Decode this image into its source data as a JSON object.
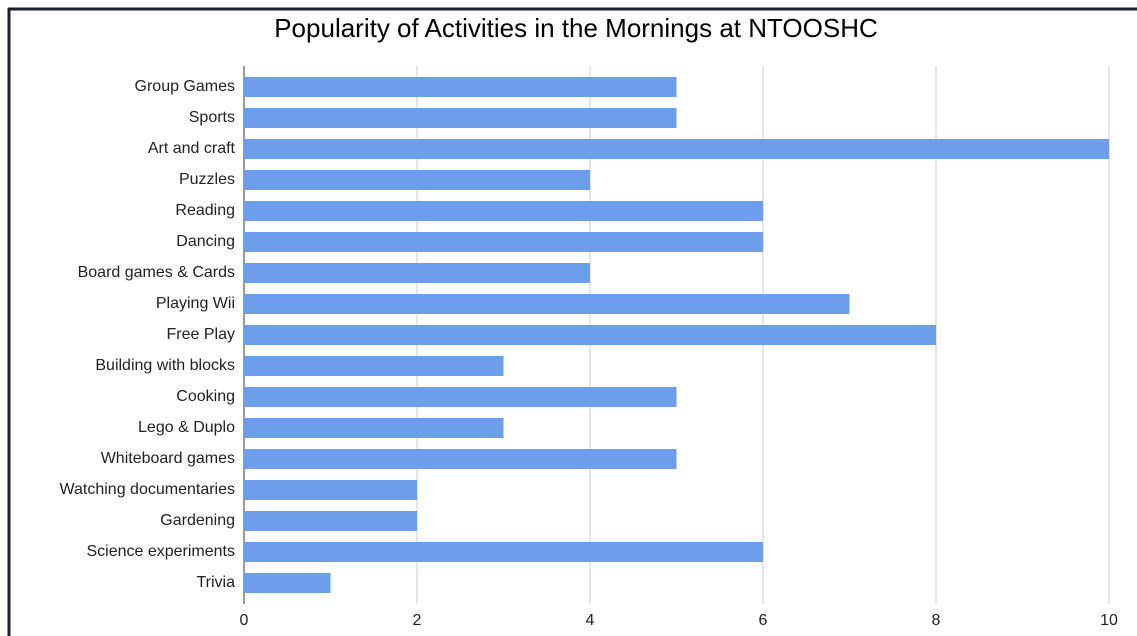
{
  "chart_data": {
    "type": "bar",
    "orientation": "horizontal",
    "title": "Popularity of Activities in the Mornings at NTOOSHC",
    "categories": [
      "Group Games",
      "Sports",
      "Art and craft",
      "Puzzles",
      "Reading",
      "Dancing",
      "Board games & Cards",
      "Playing Wii",
      "Free Play",
      "Building with blocks",
      "Cooking",
      "Lego & Duplo",
      "Whiteboard games",
      "Watching documentaries",
      "Gardening",
      "Science experiments",
      "Trivia"
    ],
    "values": [
      5,
      5,
      10,
      4,
      6,
      6,
      4,
      7,
      8,
      3,
      5,
      3,
      5,
      2,
      2,
      6,
      1
    ],
    "color": "#6d9eeb",
    "xlim": [
      0,
      10
    ],
    "xticks": [
      0,
      2,
      4,
      6,
      8,
      10
    ],
    "grid": true
  }
}
